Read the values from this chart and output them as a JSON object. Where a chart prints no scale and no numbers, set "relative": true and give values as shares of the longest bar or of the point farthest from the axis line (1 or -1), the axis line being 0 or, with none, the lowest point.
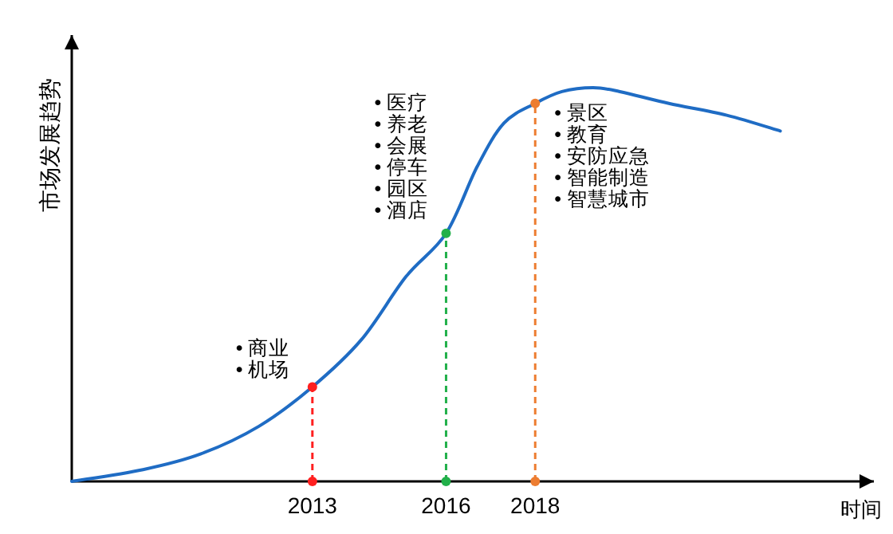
{
  "chart_data": {
    "type": "line",
    "relative": true,
    "xlabel": "时间",
    "ylabel": "市场发展趋势",
    "xlim": [
      2007.6,
      2025.6
    ],
    "xticks": [
      2013,
      2016,
      2018
    ],
    "series": [
      {
        "color": "#1f6cc4",
        "marker": "none",
        "line_style": "solid",
        "x": [
          2007.6,
          2009.2,
          2010.5,
          2011.8,
          2013,
          2014.1,
          2015.1,
          2016,
          2016.7,
          2017.3,
          2018,
          2018.6,
          2019.3,
          2019.9,
          2021.0,
          2022.3,
          2023.5
        ],
        "values": [
          0,
          0.03,
          0.07,
          0.14,
          0.24,
          0.36,
          0.52,
          0.63,
          0.8,
          0.91,
          0.96,
          0.99,
          1,
          0.99,
          0.96,
          0.93,
          0.89
        ]
      },
      {
        "type": "lollipop",
        "line_style": "dashed",
        "marker": "circle",
        "x": [
          2013,
          2016,
          2018
        ],
        "values": [
          0.24,
          0.63,
          0.96
        ],
        "colors": [
          "#ff2020",
          "#22b04a",
          "#ed7d31"
        ]
      },
      {
        "type": "scatter",
        "marker": "circle",
        "x": [
          2013,
          2016,
          2018
        ],
        "values": [
          0,
          0,
          0
        ],
        "colors": [
          "#ff2020",
          "#22b04a",
          "#ed7d31"
        ]
      }
    ],
    "annotations": [
      {
        "text": "• 商业\n• 机场",
        "x": 2013,
        "y": 0.24
      },
      {
        "text": "• 医疗\n• 养老\n• 会展\n• 停车\n• 园区\n• 酒店",
        "x": 2016,
        "y": 0.63
      },
      {
        "text": "• 景区\n• 教育\n• 安防应急\n• 智能制造\n• 智慧城市",
        "x": 2018,
        "y": 0.96
      }
    ]
  }
}
